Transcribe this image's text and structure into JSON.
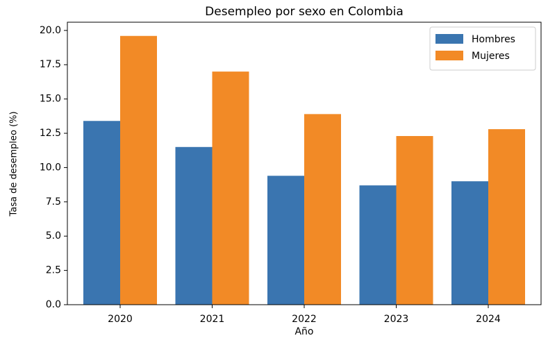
{
  "chart_data": {
    "type": "bar",
    "title": "Desempleo por sexo en Colombia",
    "x_label": "Año",
    "y_label": "Tasa de desempleo (%)",
    "categories": [
      "2020",
      "2021",
      "2022",
      "2023",
      "2024"
    ],
    "series": [
      {
        "name": "Hombres",
        "color": "#3a75b0",
        "values": [
          13.4,
          11.5,
          9.4,
          8.7,
          9.0
        ]
      },
      {
        "name": "Mujeres",
        "color": "#f28a26",
        "values": [
          19.6,
          17.0,
          13.9,
          12.3,
          12.8
        ]
      }
    ],
    "ylim": [
      0,
      20.6
    ],
    "yticks": [
      {
        "value": 0,
        "label": "0.0"
      },
      2.5,
      {
        "value": 5,
        "label": "5.0"
      },
      7.5,
      {
        "value": 10,
        "label": "10.0"
      },
      12.5,
      {
        "value": 15,
        "label": "15.0"
      },
      17.5,
      {
        "value": 20,
        "label": "20.0"
      }
    ],
    "legend": "upper right",
    "grid": false
  }
}
